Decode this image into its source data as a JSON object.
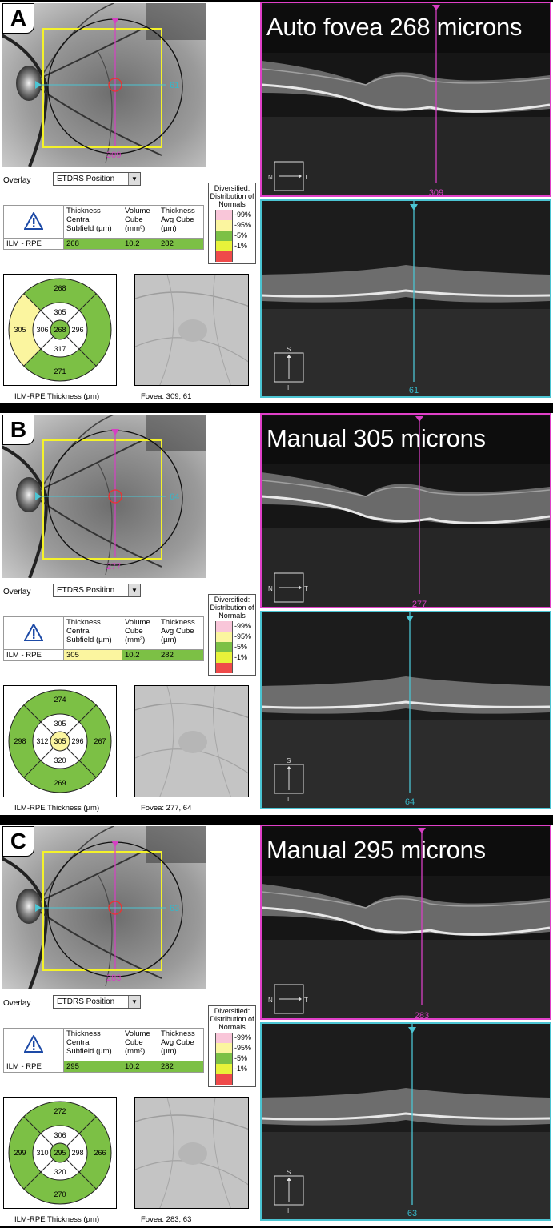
{
  "panels": [
    {
      "letter": "A",
      "title": "Auto fovea 268 microns",
      "overlay_label": "Overlay",
      "overlay_value": "ETDRS Position",
      "horizontal_line_label": "61",
      "vertical_line_label": "309",
      "table": {
        "headers": [
          "Thickness Central Subfield (µm)",
          "Volume Cube (mm³)",
          "Thickness Avg Cube (µm)"
        ],
        "row_label": "ILM - RPE",
        "values": [
          "268",
          "10.2",
          "282"
        ],
        "cell_colors": [
          "#7cc045",
          "#7cc045",
          "#7cc045"
        ]
      },
      "map": {
        "superior_outer": "268",
        "temporal_outer": "305",
        "nasal_outer": "",
        "inferior_outer": "271",
        "superior_inner": "305",
        "temporal_inner": "306",
        "center": "268",
        "nasal_inner": "296",
        "inferior_inner": "317",
        "outer_colors": {
          "superior": "#7cc045",
          "temporal": "#fbf59f",
          "nasal": "#7cc045",
          "inferior": "#7cc045"
        },
        "inner_color": "#7cc045",
        "center_color": "#7cc045",
        "caption": "ILM-RPE Thickness (µm)"
      },
      "fovea_caption": "Fovea: 309, 61",
      "oct_top": {
        "axis_left": "N",
        "axis_right": "T",
        "marker_label": "309"
      },
      "oct_bottom": {
        "axis_top": "S",
        "axis_bottom": "I",
        "marker_label": "61"
      }
    },
    {
      "letter": "B",
      "title": "Manual 305 microns",
      "overlay_label": "Overlay",
      "overlay_value": "ETDRS Position",
      "horizontal_line_label": "64",
      "vertical_line_label": "277",
      "table": {
        "headers": [
          "Thickness Central Subfield (µm)",
          "Volume Cube (mm³)",
          "Thickness Avg Cube (µm)"
        ],
        "row_label": "ILM - RPE",
        "values": [
          "305",
          "10.2",
          "282"
        ],
        "cell_colors": [
          "#fbf59f",
          "#7cc045",
          "#7cc045"
        ]
      },
      "map": {
        "superior_outer": "274",
        "temporal_outer": "298",
        "nasal_outer": "267",
        "inferior_outer": "269",
        "superior_inner": "305",
        "temporal_inner": "312",
        "center": "305",
        "nasal_inner": "296",
        "inferior_inner": "320",
        "outer_colors": {
          "superior": "#7cc045",
          "temporal": "#7cc045",
          "nasal": "#7cc045",
          "inferior": "#7cc045"
        },
        "inner_color": "#7cc045",
        "center_color": "#fbf59f",
        "caption": "ILM-RPE Thickness (µm)"
      },
      "fovea_caption": "Fovea: 277, 64",
      "oct_top": {
        "axis_left": "N",
        "axis_right": "T",
        "marker_label": "277"
      },
      "oct_bottom": {
        "axis_top": "S",
        "axis_bottom": "I",
        "marker_label": "64"
      }
    },
    {
      "letter": "C",
      "title": "Manual 295 microns",
      "overlay_label": "Overlay",
      "overlay_value": "ETDRS Position",
      "horizontal_line_label": "63",
      "vertical_line_label": "283",
      "table": {
        "headers": [
          "Thickness Central Subfield (µm)",
          "Volume Cube (mm³)",
          "Thickness Avg Cube (µm)"
        ],
        "row_label": "ILM - RPE",
        "values": [
          "295",
          "10.2",
          "282"
        ],
        "cell_colors": [
          "#7cc045",
          "#7cc045",
          "#7cc045"
        ]
      },
      "map": {
        "superior_outer": "272",
        "temporal_outer": "299",
        "nasal_outer": "266",
        "inferior_outer": "270",
        "superior_inner": "306",
        "temporal_inner": "310",
        "center": "295",
        "nasal_inner": "298",
        "inferior_inner": "320",
        "outer_colors": {
          "superior": "#7cc045",
          "temporal": "#7cc045",
          "nasal": "#7cc045",
          "inferior": "#7cc045"
        },
        "inner_color": "#7cc045",
        "center_color": "#7cc045",
        "caption": "ILM-RPE Thickness (µm)"
      },
      "fovea_caption": "Fovea: 283, 63",
      "oct_top": {
        "axis_left": "N",
        "axis_right": "T",
        "marker_label": "283"
      },
      "oct_bottom": {
        "axis_top": "S",
        "axis_bottom": "I",
        "marker_label": "63"
      }
    }
  ],
  "legend": {
    "title": "Diversified: Distribution of Normals",
    "entries": [
      {
        "label": "99%",
        "color": "#f9c6d9"
      },
      {
        "label": "95%",
        "color": "#fbf59f"
      },
      {
        "label": "5%",
        "color": "#7cc045"
      },
      {
        "label": "1%",
        "color": "#e8f23a"
      },
      {
        "label": "",
        "color": "#ef4a4a"
      }
    ],
    "tick_labels": [
      "99%",
      "95%",
      "5%",
      "1%"
    ]
  }
}
